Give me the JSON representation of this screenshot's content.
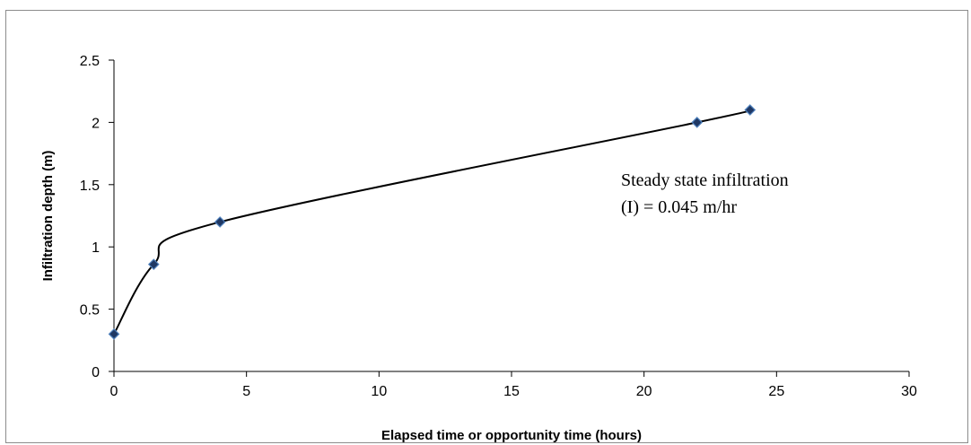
{
  "chart_data": {
    "type": "scatter",
    "title": "",
    "xlabel": "Elapsed time or opportunity time (hours)",
    "ylabel": "Infiltration depth (m)",
    "xlim": [
      0,
      30
    ],
    "ylim": [
      0,
      2.5
    ],
    "x_ticks": [
      0,
      5,
      10,
      15,
      20,
      25,
      30
    ],
    "y_ticks": [
      0,
      0.5,
      1,
      1.5,
      2,
      2.5
    ],
    "x_tick_labels": [
      "0",
      "5",
      "10",
      "15",
      "20",
      "25",
      "30"
    ],
    "y_tick_labels": [
      "0",
      "0.5",
      "1",
      "1.5",
      "2",
      "2.5"
    ],
    "grid": false,
    "legend": "none",
    "smoothed_line": true,
    "series": [
      {
        "x": [
          0,
          1.5,
          4,
          22,
          24
        ],
        "y": [
          0.3,
          0.86,
          1.2,
          2.0,
          2.1
        ],
        "marker": "diamond",
        "marker_color": "#1f3864",
        "marker_edge_color": "#4f81bd",
        "line_color": "#000000"
      }
    ],
    "annotations": [
      {
        "line1": "Steady state infiltration",
        "line2": "(I) = 0.045 m/hr"
      }
    ]
  }
}
